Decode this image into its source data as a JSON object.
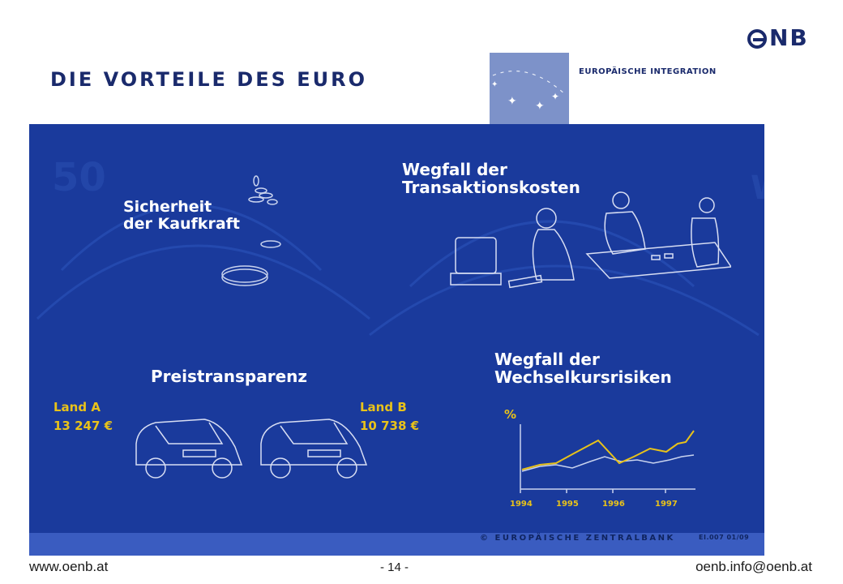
{
  "header": {
    "title": "DIE VORTEILE DES EURO",
    "logo_text": "NB",
    "eu_label": "EUROPÄISCHE INTEGRATION"
  },
  "poster": {
    "sicherheit": [
      "Sicherheit",
      "der Kaufkraft"
    ],
    "transaktion": [
      "Wegfall der",
      "Transaktionskosten"
    ],
    "preis": "Preistransparenz",
    "wechsel": [
      "Wegfall der",
      "Wechselkursrisiken"
    ],
    "land_a": {
      "label": "Land A",
      "price": "13 247 €"
    },
    "land_b": {
      "label": "Land B",
      "price": "10 738 €"
    },
    "chart_unit": "%",
    "years": [
      "1994",
      "1995",
      "1996",
      "1997"
    ],
    "ecb": "© EUROPÄISCHE ZENTRALBANK",
    "ecb_code": "EI.007 01/09"
  },
  "footer": {
    "left": "www.oenb.at",
    "page": "- 14 -",
    "right": "oenb.info@oenb.at"
  },
  "colors": {
    "panel": "#1a3a9c",
    "accent_yellow": "#e8c21a",
    "brand_navy": "#1a2a6c"
  }
}
